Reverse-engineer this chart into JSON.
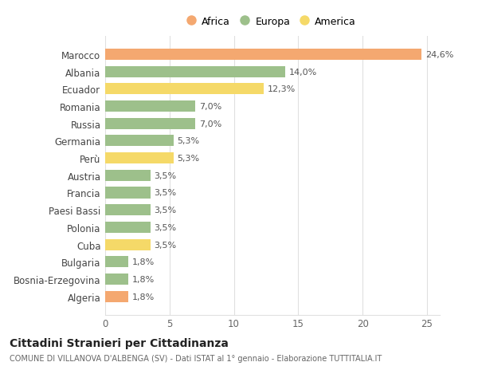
{
  "categories": [
    "Marocco",
    "Albania",
    "Ecuador",
    "Romania",
    "Russia",
    "Germania",
    "Perù",
    "Austria",
    "Francia",
    "Paesi Bassi",
    "Polonia",
    "Cuba",
    "Bulgaria",
    "Bosnia-Erzegovina",
    "Algeria"
  ],
  "values": [
    24.6,
    14.0,
    12.3,
    7.0,
    7.0,
    5.3,
    5.3,
    3.5,
    3.5,
    3.5,
    3.5,
    3.5,
    1.8,
    1.8,
    1.8
  ],
  "labels": [
    "24,6%",
    "14,0%",
    "12,3%",
    "7,0%",
    "7,0%",
    "5,3%",
    "5,3%",
    "3,5%",
    "3,5%",
    "3,5%",
    "3,5%",
    "3,5%",
    "1,8%",
    "1,8%",
    "1,8%"
  ],
  "colors": [
    "#F4A870",
    "#9DC08B",
    "#F5D968",
    "#9DC08B",
    "#9DC08B",
    "#9DC08B",
    "#F5D968",
    "#9DC08B",
    "#9DC08B",
    "#9DC08B",
    "#9DC08B",
    "#F5D968",
    "#9DC08B",
    "#9DC08B",
    "#F4A870"
  ],
  "legend": [
    {
      "label": "Africa",
      "color": "#F4A870"
    },
    {
      "label": "Europa",
      "color": "#9DC08B"
    },
    {
      "label": "America",
      "color": "#F5D968"
    }
  ],
  "title": "Cittadini Stranieri per Cittadinanza",
  "subtitle": "COMUNE DI VILLANOVA D'ALBENGA (SV) - Dati ISTAT al 1° gennaio - Elaborazione TUTTITALIA.IT",
  "xlim": [
    0,
    26
  ],
  "xticks": [
    0,
    5,
    10,
    15,
    20,
    25
  ],
  "background_color": "#ffffff",
  "grid_color": "#e0e0e0"
}
